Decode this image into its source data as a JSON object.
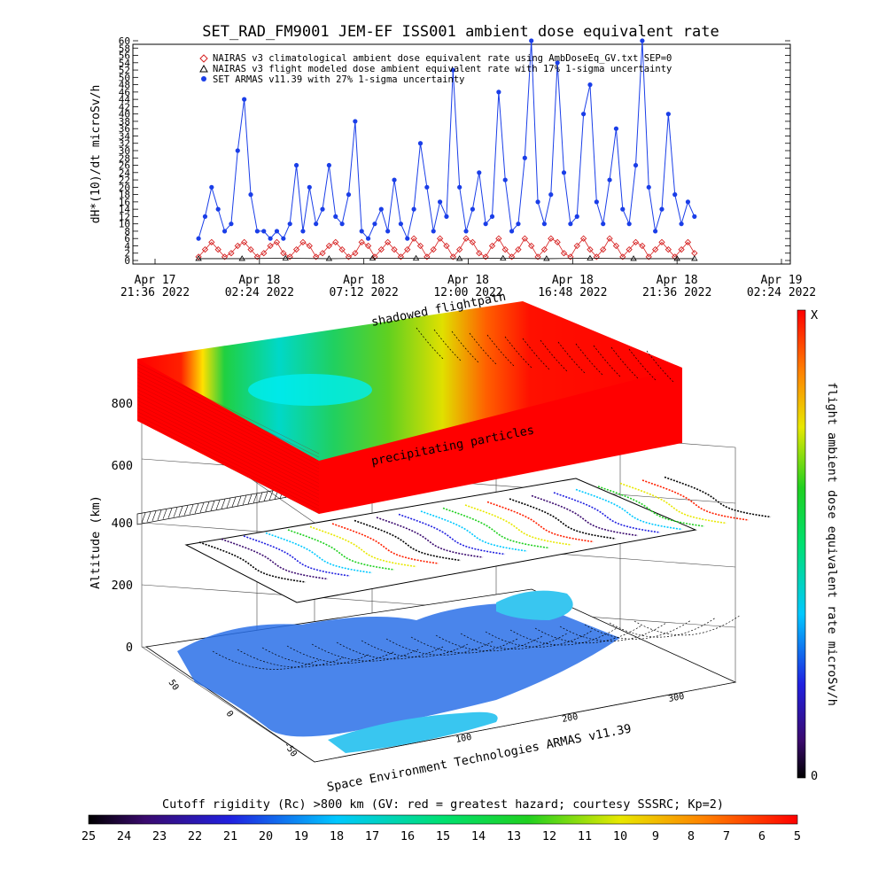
{
  "chart_data": [
    {
      "type": "scatter",
      "title": "SET_RAD_FM9001  JEM-EF ISS001 ambient dose equivalent rate",
      "ylabel": "dH*(10)/dt microSv/h",
      "ylim": [
        0,
        60
      ],
      "y_ticks": [
        "0",
        "2",
        "4",
        "6",
        "8",
        "10",
        "12",
        "14",
        "16",
        "18",
        "20",
        "22",
        "24",
        "26",
        "28",
        "30",
        "32",
        "34",
        "36",
        "38",
        "40",
        "42",
        "44",
        "46",
        "48",
        "50",
        "52",
        "54",
        "56",
        "58",
        "60"
      ],
      "x_ticks": [
        {
          "line1": "Apr 17",
          "line2": "21:36 2022"
        },
        {
          "line1": "Apr 18",
          "line2": "02:24 2022"
        },
        {
          "line1": "Apr 18",
          "line2": "07:12 2022"
        },
        {
          "line1": "Apr 18",
          "line2": "12:00 2022"
        },
        {
          "line1": "Apr 18",
          "line2": "16:48 2022"
        },
        {
          "line1": "Apr 18",
          "line2": "21:36 2022"
        },
        {
          "line1": "Apr 19",
          "line2": "02:24 2022"
        }
      ],
      "legend_position": "top",
      "series": [
        {
          "name": "NAIRAS v3 climatological ambient dose equivalent rate using AmbDoseEq_GV.txt SEP=0",
          "marker": "diamond",
          "color": "#d62020",
          "x_hours": [
            2.0,
            2.3,
            2.6,
            2.9,
            3.2,
            3.5,
            3.8,
            4.1,
            4.4,
            4.7,
            5.0,
            5.3,
            5.6,
            5.9,
            6.2,
            6.5,
            6.8,
            7.1,
            7.4,
            7.7,
            8.0,
            8.3,
            8.6,
            8.9,
            9.2,
            9.5,
            9.8,
            10.1,
            10.4,
            10.7,
            11.0,
            11.3,
            11.6,
            11.9,
            12.2,
            12.5,
            12.8,
            13.1,
            13.4,
            13.7,
            14.0,
            14.3,
            14.6,
            14.9,
            15.2,
            15.5,
            15.8,
            16.1,
            16.4,
            16.7,
            17.0,
            17.3,
            17.6,
            17.9,
            18.2,
            18.5,
            18.8,
            19.1,
            19.4,
            19.7,
            20.0,
            20.3,
            20.6,
            20.9,
            21.2,
            21.5,
            21.8,
            22.1,
            22.4,
            22.7,
            23.0,
            23.3,
            23.6,
            23.9,
            24.2,
            24.5,
            24.8
          ],
          "values": [
            1,
            3,
            5,
            3,
            1,
            2,
            4,
            5,
            3,
            1,
            2,
            4,
            5,
            2,
            1,
            3,
            5,
            4,
            1,
            2,
            4,
            5,
            3,
            1,
            2,
            5,
            4,
            1,
            3,
            5,
            3,
            1,
            3,
            6,
            4,
            1,
            3,
            6,
            4,
            1,
            3,
            6,
            5,
            2,
            1,
            4,
            6,
            3,
            1,
            3,
            6,
            4,
            1,
            3,
            6,
            5,
            2,
            1,
            4,
            6,
            3,
            1,
            3,
            6,
            4,
            1,
            3,
            5,
            4,
            1,
            3,
            5,
            3,
            1,
            3,
            5,
            2
          ]
        },
        {
          "name": "NAIRAS v3 flight modeled dose ambient equivalent rate with 17% 1-sigma uncertainty",
          "marker": "triangle",
          "color": "#000000",
          "x_hours": [
            2.0,
            4.0,
            6.0,
            8.0,
            10.0,
            12.0,
            14.0,
            16.0,
            18.0,
            20.0,
            22.0,
            24.0,
            24.8
          ],
          "values": [
            0.5,
            0.5,
            0.6,
            0.5,
            0.6,
            0.6,
            0.5,
            0.6,
            0.5,
            0.6,
            0.5,
            0.5,
            0.5
          ]
        },
        {
          "name": "SET ARMAS v11.39 with 27% 1-sigma uncertainty",
          "marker": "circle",
          "color": "#1a3ee8",
          "x_hours": [
            2.0,
            2.3,
            2.6,
            2.9,
            3.2,
            3.5,
            3.8,
            4.1,
            4.4,
            4.7,
            5.0,
            5.3,
            5.6,
            5.9,
            6.2,
            6.5,
            6.8,
            7.1,
            7.4,
            7.7,
            8.0,
            8.3,
            8.6,
            8.9,
            9.2,
            9.5,
            9.8,
            10.1,
            10.4,
            10.7,
            11.0,
            11.3,
            11.6,
            11.9,
            12.2,
            12.5,
            12.8,
            13.1,
            13.4,
            13.7,
            14.0,
            14.3,
            14.6,
            14.9,
            15.2,
            15.5,
            15.8,
            16.1,
            16.4,
            16.7,
            17.0,
            17.3,
            17.6,
            17.9,
            18.2,
            18.5,
            18.8,
            19.1,
            19.4,
            19.7,
            20.0,
            20.3,
            20.6,
            20.9,
            21.2,
            21.5,
            21.8,
            22.1,
            22.4,
            22.7,
            23.0,
            23.3,
            23.6,
            23.9,
            24.2,
            24.5,
            24.8
          ],
          "values": [
            6,
            12,
            20,
            14,
            8,
            10,
            30,
            44,
            18,
            8,
            8,
            6,
            8,
            6,
            10,
            26,
            8,
            20,
            10,
            14,
            26,
            12,
            10,
            18,
            38,
            8,
            6,
            10,
            14,
            8,
            22,
            10,
            6,
            14,
            32,
            20,
            8,
            16,
            12,
            52,
            20,
            8,
            14,
            24,
            10,
            12,
            46,
            22,
            8,
            10,
            28,
            60,
            16,
            10,
            18,
            54,
            24,
            10,
            12,
            40,
            48,
            16,
            10,
            22,
            36,
            14,
            10,
            26,
            60,
            20,
            8,
            14,
            40,
            18,
            10,
            16,
            12
          ]
        }
      ]
    },
    {
      "type": "heatmap",
      "ylabel": "Altitude (km)",
      "z_ticks": [
        "0",
        "200",
        "400",
        "600",
        "800"
      ],
      "lat_ticks": [
        "50",
        "0",
        "-50"
      ],
      "lon_ticks": [
        "100",
        "200",
        "300"
      ],
      "annotations": [
        "shadowed flightpath",
        "precipitating particles"
      ],
      "credit": "Space Environment Technologies ARMAS v11.39",
      "colorbar_right": {
        "label": "flight ambient dose equivalent rate microSv/h",
        "top": "X",
        "bottom": "0"
      },
      "colorbar_bottom": {
        "label": "Cutoff rigidity (Rc) >800 km (GV: red = greatest hazard; courtesy SSSRC; Kp=2)",
        "ticks": [
          "25",
          "24",
          "23",
          "22",
          "21",
          "20",
          "19",
          "18",
          "17",
          "16",
          "15",
          "14",
          "13",
          "12",
          "11",
          "10",
          "9",
          "8",
          "7",
          "6",
          "5"
        ]
      }
    }
  ]
}
